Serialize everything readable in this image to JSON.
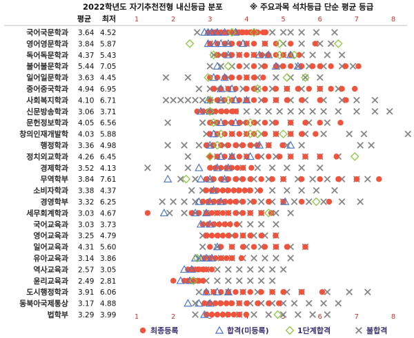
{
  "chart_data": {
    "type": "scatter",
    "title": "2022학년도 자기추천전형 내신등급 분포",
    "note": "※ 주요과목 석차등급 단순 평균 등급",
    "col_headers": {
      "avg": "평균",
      "min": "최저"
    },
    "xlim": [
      1,
      8
    ],
    "x_ticks": [
      1,
      2,
      3,
      4,
      5,
      6,
      7,
      8
    ],
    "tick_color": "#c0392b",
    "series": [
      {
        "name": "최종등록",
        "marker": "circle",
        "color": "#f0543c"
      },
      {
        "name": "합격(미등록)",
        "marker": "triangle",
        "color": "#4a78c8"
      },
      {
        "name": "1단계합격",
        "marker": "diamond",
        "color": "#8cc63e"
      },
      {
        "name": "불합격",
        "marker": "x",
        "color": "#858585"
      }
    ],
    "departments": [
      {
        "name": "국어국문학과",
        "avg": 3.64,
        "min": 4.52,
        "points": {
          "reg": [
            2.95,
            3.1,
            3.2,
            3.3,
            3.4,
            3.5,
            3.6,
            3.7,
            3.8,
            3.9,
            4.0,
            4.1,
            4.2,
            4.3,
            4.45,
            4.52
          ],
          "pass": [
            2.85,
            2.95,
            3.05,
            3.2,
            3.4,
            3.7
          ],
          "stage1": [
            3.6,
            4.2
          ],
          "fail": [
            2.65,
            3.1,
            3.8,
            4.2,
            4.7,
            5.0,
            5.2,
            5.5,
            5.9,
            6.4
          ]
        }
      },
      {
        "name": "영어영문학과",
        "avg": 3.84,
        "min": 5.87,
        "points": {
          "reg": [
            3.0,
            3.2,
            3.4,
            3.6,
            3.8,
            4.0,
            4.2,
            4.5,
            4.8,
            5.2,
            5.87
          ],
          "pass": [
            2.95,
            3.15,
            3.3,
            3.5,
            3.9
          ],
          "stage1": [
            2.45,
            4.9,
            6.5
          ],
          "fail": [
            3.0,
            3.5,
            4.0,
            4.5,
            5.0,
            5.5,
            6.0,
            6.3
          ]
        }
      },
      {
        "name": "독어독문학과",
        "avg": 4.37,
        "min": 5.43,
        "points": {
          "reg": [
            3.2,
            3.4,
            3.6,
            3.8,
            4.0,
            4.2,
            4.4,
            4.6,
            4.8,
            5.0,
            5.2,
            5.43
          ],
          "pass": [
            3.5,
            4.35,
            4.6,
            5.2
          ],
          "stage1": [
            3.1,
            4.9,
            5.3
          ],
          "fail": [
            3.1,
            3.3,
            3.5,
            3.8,
            4.2,
            4.5,
            5.0,
            5.5,
            5.8,
            6.2,
            6.6
          ]
        }
      },
      {
        "name": "불어불문학과",
        "avg": 5.44,
        "min": 7.05,
        "points": {
          "reg": [
            3.8,
            4.2,
            4.5,
            4.8,
            5.0,
            5.2,
            5.5,
            5.8,
            6.0,
            6.3,
            6.7,
            7.05
          ],
          "pass": [
            3.2,
            4.8,
            5.4
          ],
          "stage1": [
            3.5
          ],
          "fail": [
            3.0,
            3.3,
            3.6,
            4.0,
            4.4,
            4.9,
            5.4,
            5.7,
            6.1,
            6.6,
            6.9
          ]
        }
      },
      {
        "name": "일어일문학과",
        "avg": 3.63,
        "avg_note": "",
        "min": 4.45,
        "points": {
          "reg": [
            3.0,
            3.2,
            3.4,
            3.6,
            3.8,
            4.0,
            4.2,
            4.45
          ],
          "pass": [
            3.1,
            3.4
          ],
          "stage1": [
            2.95,
            5.1,
            5.6
          ],
          "fail": [
            1.8,
            2.4,
            3.5,
            4.0,
            4.3,
            4.8,
            5.2,
            5.6,
            6.0
          ]
        }
      },
      {
        "name": "중어중국학과",
        "avg": 4.94,
        "min": 6.95,
        "points": {
          "reg": [
            3.1,
            3.3,
            3.5,
            3.7,
            4.0,
            4.2,
            4.5,
            4.8,
            5.1,
            5.4,
            5.7,
            6.0,
            6.3,
            6.6,
            6.95
          ],
          "pass": [
            3.3,
            3.6
          ],
          "stage1": [
            4.3
          ],
          "fail": [
            2.7,
            3.0,
            3.2,
            3.5,
            3.9,
            4.3,
            4.7,
            5.1,
            5.5,
            6.0,
            6.5
          ]
        }
      },
      {
        "name": "사회복지학과",
        "avg": 4.1,
        "min": 6.71,
        "points": {
          "reg": [
            3.0,
            3.2,
            3.4,
            3.6,
            3.8,
            4.0,
            4.2,
            4.5,
            4.8,
            5.1,
            5.5,
            6.0,
            6.71
          ],
          "pass": [
            2.95,
            3.3,
            3.7,
            4.0
          ],
          "stage1": [
            3.0,
            3.5
          ],
          "fail": [
            1.8,
            2.0,
            2.2,
            2.4,
            2.6,
            2.8,
            3.0,
            3.3,
            3.6,
            4.0,
            4.4,
            4.8,
            5.2,
            5.6,
            6.1,
            6.6,
            7.0,
            7.5
          ]
        }
      },
      {
        "name": "신문방송학과",
        "avg": 3.06,
        "min": 3.71,
        "points": {
          "reg": [
            2.65,
            2.8,
            2.95,
            3.05,
            3.15,
            3.3,
            3.45,
            3.6,
            3.71
          ],
          "pass": [
            2.75,
            3.0
          ],
          "stage1": [
            3.0
          ],
          "fail": [
            2.9,
            3.1,
            3.4,
            3.7,
            4.0,
            4.3,
            4.6,
            4.9,
            5.2,
            5.5,
            5.8,
            6.1,
            6.5,
            7.0,
            7.5,
            7.9
          ]
        }
      },
      {
        "name": "문헌정보학과",
        "avg": 4.05,
        "min": 6.56,
        "points": {
          "reg": [
            3.0,
            3.2,
            3.4,
            3.6,
            3.8,
            4.0,
            4.2,
            4.5,
            4.8,
            5.2,
            5.6,
            6.0,
            6.56
          ],
          "pass": [
            3.3,
            3.7
          ],
          "stage1": [
            3.1,
            4.1
          ],
          "fail": [
            1.85,
            2.8,
            3.1,
            3.5,
            3.9,
            4.3,
            4.7,
            5.2,
            5.7,
            6.2
          ]
        }
      },
      {
        "name": "창의인재개발학",
        "avg": 4.03,
        "min": 5.88,
        "points": {
          "reg": [
            3.0,
            3.2,
            3.4,
            3.6,
            3.8,
            4.0,
            4.2,
            4.5,
            4.8,
            5.2,
            5.5,
            5.88
          ],
          "pass": [
            3.1
          ],
          "stage1": [
            3.3,
            4.1,
            4.3,
            5.0
          ],
          "fail": [
            2.9,
            3.2,
            3.6,
            4.0,
            4.4,
            4.8,
            5.2,
            5.6,
            6.1,
            6.8,
            7.2,
            8.4
          ]
        }
      },
      {
        "name": "행정학과",
        "avg": 3.36,
        "min": 4.98,
        "points": {
          "reg": [
            2.9,
            3.1,
            3.3,
            3.5,
            3.7,
            3.9,
            4.1,
            4.3,
            4.6,
            4.98
          ],
          "pass": [
            3.0,
            4.35,
            5.2
          ],
          "stage1": [
            3.2
          ],
          "fail": [
            1.85,
            2.3,
            2.7,
            3.0,
            3.4,
            3.8,
            4.2,
            4.6,
            5.1,
            5.5,
            7.1,
            7.4
          ]
        }
      },
      {
        "name": "정치외교학과",
        "avg": 4.26,
        "min": 6.45,
        "points": {
          "reg": [
            3.0,
            3.2,
            3.4,
            3.6,
            3.8,
            4.0,
            4.3,
            4.6,
            4.9,
            5.2,
            5.6,
            6.0,
            6.45
          ],
          "pass": [
            3.3,
            3.6,
            4.1
          ],
          "stage1": [
            3.0,
            6.95
          ],
          "fail": [
            2.4,
            3.2,
            3.6,
            4.0,
            4.4,
            4.8,
            5.2,
            5.6,
            6.0,
            6.5
          ]
        }
      },
      {
        "name": "경제학과",
        "avg": 3.52,
        "min": 4.13,
        "points": {
          "reg": [
            3.0,
            3.15,
            3.3,
            3.45,
            3.6,
            3.75,
            3.9,
            4.13
          ],
          "pass": [
            2.7,
            3.2,
            3.5
          ],
          "stage1": [],
          "fail": [
            1.3,
            1.85,
            2.4,
            3.1,
            3.5,
            3.9,
            4.3,
            4.7,
            5.1,
            5.5,
            6.0
          ]
        }
      },
      {
        "name": "무역학부",
        "avg": 3.84,
        "min": 7.61,
        "points": {
          "reg": [
            2.9,
            3.1,
            3.3,
            3.5,
            3.7,
            3.9,
            4.1,
            4.4,
            4.7,
            5.0,
            5.5,
            6.0,
            6.5,
            7.0,
            7.61
          ],
          "pass": [
            1.85,
            2.75,
            3.0,
            3.4
          ],
          "stage1": [
            2.35
          ],
          "fail": [
            2.2,
            2.6,
            3.0,
            3.4,
            3.8,
            4.2,
            4.6,
            5.0,
            5.4,
            5.8,
            6.2,
            6.6,
            7.0,
            7.3
          ]
        }
      },
      {
        "name": "소비자학과",
        "avg": 3.38,
        "min": 4.37,
        "points": {
          "reg": [
            2.9,
            3.05,
            3.2,
            3.35,
            3.5,
            3.65,
            3.8,
            3.95,
            4.1,
            4.37
          ],
          "pass": [
            3.1
          ],
          "stage1": [],
          "fail": [
            2.5,
            2.8,
            3.1,
            3.4,
            3.7,
            4.0,
            4.3,
            4.7,
            5.1,
            5.5,
            5.9,
            6.4
          ]
        }
      },
      {
        "name": "경영학부",
        "avg": 3.32,
        "min": 6.25,
        "points": {
          "reg": [
            2.8,
            2.95,
            3.1,
            3.25,
            3.4,
            3.55,
            3.7,
            3.9,
            4.2,
            4.6,
            5.0,
            5.5,
            6.25
          ],
          "pass": [
            2.7,
            3.0,
            3.3,
            5.05
          ],
          "stage1": [
            5.9
          ],
          "fail": [
            1.7,
            2.0,
            2.3,
            2.6,
            2.9,
            3.2,
            3.5,
            3.8,
            4.1,
            4.4,
            4.7,
            5.0,
            5.3,
            5.7,
            6.1,
            6.6,
            7.1
          ]
        }
      },
      {
        "name": "세무회계학과",
        "avg": 3.03,
        "min": 4.67,
        "points": {
          "reg": [
            1.3,
            2.5,
            2.7,
            2.9,
            3.05,
            3.2,
            3.35,
            3.5,
            3.7,
            3.9,
            4.1,
            4.4,
            4.67
          ],
          "pass": [
            1.75,
            2.6,
            2.9
          ],
          "stage1": [
            4.6
          ],
          "fail": [
            1.9,
            2.3,
            2.6,
            2.9,
            3.2,
            3.5,
            3.8,
            4.1,
            4.4,
            4.8,
            5.2
          ]
        }
      },
      {
        "name": "국어교육과",
        "avg": 3.03,
        "min": 3.73,
        "points": {
          "reg": [
            2.8,
            2.95,
            3.1,
            3.25,
            3.4,
            3.55,
            3.73
          ],
          "pass": [
            2.75,
            3.0
          ],
          "stage1": [],
          "fail": [
            2.9,
            3.2,
            3.5,
            3.8,
            4.1,
            4.4,
            4.8
          ]
        }
      },
      {
        "name": "영어교육과",
        "avg": 3.25,
        "min": 4.79,
        "points": {
          "reg": [
            2.9,
            3.05,
            3.2,
            3.35,
            3.5,
            3.7,
            3.9,
            4.1,
            4.4,
            4.79
          ],
          "pass": [],
          "stage1": [],
          "fail": [
            2.8,
            3.0,
            3.3,
            3.6,
            3.9,
            4.2,
            4.5,
            4.8
          ]
        }
      },
      {
        "name": "일어교육과",
        "avg": 4.31,
        "min": 5.6,
        "points": {
          "reg": [
            3.0,
            3.3,
            3.6,
            3.9,
            4.2,
            4.5,
            4.8,
            5.1,
            5.6
          ],
          "pass": [
            3.2
          ],
          "stage1": [],
          "fail": [
            2.8,
            3.2,
            3.6,
            4.0,
            4.4,
            4.8,
            5.2,
            5.6
          ]
        }
      },
      {
        "name": "유아교육과",
        "avg": 3.14,
        "min": 3.86,
        "points": {
          "reg": [
            2.85,
            3.0,
            3.15,
            3.3,
            3.45,
            3.6,
            3.86
          ],
          "pass": [
            2.6,
            2.75,
            2.9,
            3.05
          ],
          "stage1": [
            2.65
          ],
          "fail": [
            2.7,
            3.0,
            3.3,
            3.6,
            3.9,
            4.2,
            4.5,
            4.8,
            5.2
          ]
        }
      },
      {
        "name": "역사교육과",
        "avg": 2.57,
        "min": 3.05,
        "points": {
          "reg": [
            2.4,
            2.5,
            2.6,
            2.7,
            2.8,
            2.9,
            3.05
          ],
          "pass": [
            2.3,
            2.5
          ],
          "stage1": [],
          "fail": [
            2.6,
            2.9,
            3.2,
            3.5,
            3.8,
            4.1,
            4.4,
            4.7,
            5.0
          ]
        }
      },
      {
        "name": "윤리교육과",
        "avg": 2.49,
        "min": 2.81,
        "points": {
          "reg": [
            2.0,
            2.3,
            2.4,
            2.5,
            2.6,
            2.7,
            2.81
          ],
          "pass": [
            2.2,
            2.45
          ],
          "stage1": [
            2.55
          ],
          "fail": [
            2.6,
            2.9,
            3.2,
            3.5,
            3.8,
            4.1,
            4.4,
            4.7
          ]
        }
      },
      {
        "name": "도시행정학과",
        "avg": 3.91,
        "min": 6.06,
        "points": {
          "reg": [
            2.9,
            3.1,
            3.3,
            3.5,
            3.7,
            3.9,
            4.1,
            4.4,
            4.7,
            5.0,
            5.5,
            6.06
          ],
          "pass": [
            2.9,
            3.2,
            3.5
          ],
          "stage1": [],
          "fail": [
            2.7,
            3.1,
            3.5,
            3.9,
            4.3,
            4.7,
            5.1,
            5.5,
            6.2,
            6.8,
            7.3
          ]
        }
      },
      {
        "name": "동북아국제통상",
        "avg": 3.17,
        "min": 4.88,
        "points": {
          "reg": [
            2.85,
            3.0,
            3.15,
            3.3,
            3.45,
            3.6,
            3.8,
            4.0,
            4.3,
            4.6,
            4.88
          ],
          "pass": [
            2.4,
            2.7,
            3.0
          ],
          "stage1": [],
          "fail": [
            2.6,
            2.9,
            3.2,
            3.5,
            3.8,
            4.1,
            4.4,
            4.7,
            5.0,
            5.3,
            5.7,
            6.1,
            6.5
          ]
        }
      },
      {
        "name": "법학부",
        "avg": 3.29,
        "avg_note": "",
        "min": 3.99,
        "points": {
          "reg": [
            2.9,
            3.05,
            3.2,
            3.35,
            3.5,
            3.65,
            3.8,
            3.99
          ],
          "pass": [
            2.85
          ],
          "stage1": [
            4.85
          ],
          "fail": [
            2.6,
            3.0,
            3.4,
            3.8,
            4.2,
            4.6,
            5.0,
            5.4,
            5.8,
            6.2
          ]
        }
      }
    ]
  }
}
